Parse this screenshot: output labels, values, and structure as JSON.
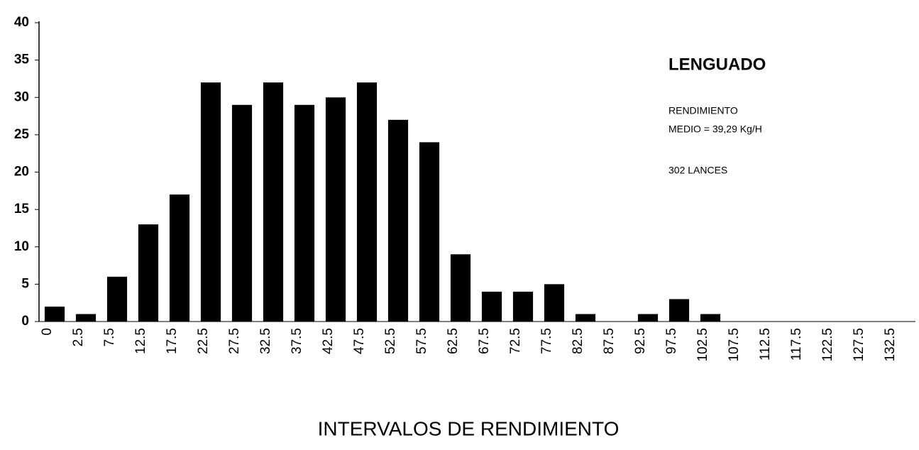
{
  "chart_data": {
    "type": "bar",
    "annotations": [
      "LENGUADO",
      "RENDIMIENTO",
      "MEDIO = 39,29 Kg/H",
      "302 LANCES"
    ],
    "xlabel": "INTERVALOS DE RENDIMIENTO",
    "categories": [
      "0",
      "2.5",
      "7.5",
      "12.5",
      "17.5",
      "22.5",
      "27.5",
      "32.5",
      "37.5",
      "42.5",
      "47.5",
      "52.5",
      "57.5",
      "62.5",
      "67.5",
      "72.5",
      "77.5",
      "82.5",
      "87.5",
      "92.5",
      "97.5",
      "102.5",
      "107.5",
      "112.5",
      "117.5",
      "122.5",
      "127.5",
      "132.5"
    ],
    "values": [
      2,
      1,
      6,
      13,
      17,
      32,
      29,
      32,
      29,
      30,
      32,
      27,
      24,
      9,
      4,
      4,
      5,
      1,
      0,
      1,
      3,
      1,
      0,
      0,
      0,
      0,
      0,
      0
    ],
    "color": "#000000",
    "ylim": [
      0,
      40
    ],
    "yticks": [
      0,
      5,
      10,
      15,
      20,
      25,
      30,
      35,
      40
    ]
  }
}
